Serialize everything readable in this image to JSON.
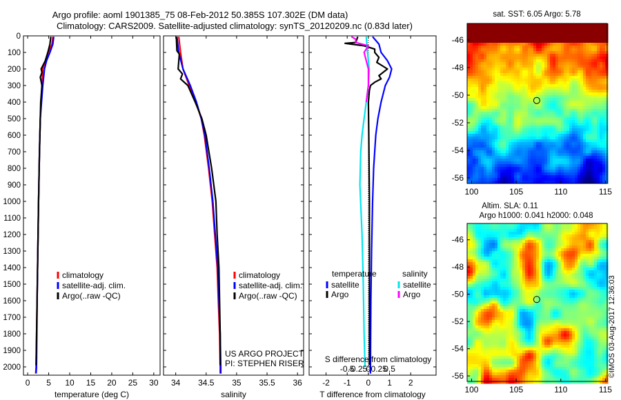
{
  "header": {
    "line1": "Argo profile: aoml 1901385_75 08-Feb-2012 50.385S 107.302E (DM data)",
    "line2": "Climatology: CARS2009. Satellite-adjusted climatology: synTS_20120209.nc (0.83d later)"
  },
  "colors": {
    "climatology": "#ff0000",
    "satellite": "#0000ff",
    "argo": "#000000",
    "salinity_satellite": "#00e5ee",
    "salinity_argo": "#ff00ff"
  },
  "chart_data": [
    {
      "type": "line",
      "id": "temperature",
      "xlabel": "temperature (deg C)",
      "xlim": [
        -1,
        31.5
      ],
      "ylim": [
        2050,
        0
      ],
      "xticks": [
        "0",
        "5",
        "10",
        "15",
        "20",
        "25",
        "30"
      ],
      "xtick_values": [
        0,
        5,
        10,
        15,
        20,
        25,
        30
      ],
      "yticks": [
        "0",
        "100",
        "200",
        "300",
        "400",
        "500",
        "600",
        "700",
        "800",
        "900",
        "1000",
        "1100",
        "1200",
        "1300",
        "1400",
        "1500",
        "1600",
        "1700",
        "1800",
        "1900",
        "2000"
      ],
      "ytick_values": [
        0,
        100,
        200,
        300,
        400,
        500,
        600,
        700,
        800,
        900,
        1000,
        1100,
        1200,
        1300,
        1400,
        1500,
        1600,
        1700,
        1800,
        1900,
        2000
      ],
      "legend": [
        "climatology",
        "satellite-adj. clim.",
        "Argo(..raw -QC)"
      ],
      "series": [
        {
          "key": "climatology",
          "depth": [
            5,
            50,
            100,
            150,
            200,
            300,
            400,
            500,
            700,
            1000,
            1500,
            2000,
            2040
          ],
          "values": [
            6.0,
            5.8,
            4.9,
            4.2,
            3.6,
            3.4,
            3.2,
            3.0,
            2.8,
            2.6,
            2.3,
            2.0,
            1.9
          ]
        },
        {
          "key": "satellite",
          "depth": [
            5,
            50,
            100,
            150,
            200,
            300,
            400,
            500,
            700,
            1000,
            1500,
            2000,
            2040
          ],
          "values": [
            6.2,
            6.0,
            5.3,
            4.5,
            4.0,
            3.6,
            3.3,
            3.0,
            2.8,
            2.6,
            2.3,
            2.1,
            2.0
          ]
        },
        {
          "key": "argo",
          "depth": [
            5,
            50,
            100,
            150,
            200,
            220,
            250,
            300,
            400,
            500,
            700,
            1000,
            1500,
            1990
          ],
          "values": [
            5.5,
            5.3,
            4.8,
            4.2,
            3.2,
            3.4,
            3.0,
            3.4,
            3.1,
            3.0,
            2.8,
            2.6,
            2.3,
            2.0
          ]
        }
      ]
    },
    {
      "type": "line",
      "id": "salinity",
      "xlabel": "salinity",
      "xlim": [
        33.8,
        36.1
      ],
      "ylim": [
        2050,
        0
      ],
      "xticks": [
        "34",
        "34.5",
        "35",
        "35.5",
        "36"
      ],
      "xtick_values": [
        34,
        34.5,
        35,
        35.5,
        36
      ],
      "legend": [
        "climatology",
        "satellite-adj. clim.",
        "Argo(..raw -QC)"
      ],
      "annotation": [
        "US ARGO PROJECT",
        "PI: STEPHEN RISER"
      ],
      "series": [
        {
          "key": "climatology",
          "depth": [
            5,
            100,
            200,
            300,
            400,
            500,
            600,
            800,
            1000,
            1200,
            1400,
            1600,
            1800,
            2000,
            2040
          ],
          "values": [
            34.05,
            34.08,
            34.12,
            34.22,
            34.33,
            34.42,
            34.47,
            34.54,
            34.6,
            34.64,
            34.68,
            34.7,
            34.72,
            34.73,
            34.73
          ]
        },
        {
          "key": "satellite",
          "depth": [
            5,
            100,
            200,
            300,
            400,
            500,
            600,
            800,
            1000,
            1200,
            1400,
            1600,
            1800,
            2000,
            2040
          ],
          "values": [
            34.02,
            34.05,
            34.12,
            34.24,
            34.34,
            34.42,
            34.48,
            34.55,
            34.61,
            34.65,
            34.69,
            34.71,
            34.73,
            34.74,
            34.74
          ]
        },
        {
          "key": "argo",
          "depth": [
            5,
            90,
            110,
            200,
            230,
            260,
            300,
            400,
            500,
            600,
            800,
            1000,
            1200,
            1400,
            1600,
            1800,
            1990
          ],
          "values": [
            34.01,
            34.02,
            34.06,
            34.04,
            34.11,
            34.08,
            34.2,
            34.32,
            34.43,
            34.5,
            34.59,
            34.66,
            34.68,
            34.71,
            34.72,
            34.73,
            34.73
          ]
        }
      ]
    },
    {
      "type": "line",
      "id": "difference",
      "xlabel": "T difference from climatology",
      "top_xlabel": "S difference from climatology",
      "xlim": [
        -2.8,
        3.2
      ],
      "ylim": [
        2050,
        0
      ],
      "xticks": [
        "-2",
        "-1",
        "0",
        "1",
        "2"
      ],
      "xtick_values": [
        -2,
        -1,
        0,
        1,
        2
      ],
      "top_xticks": [
        "-0.5",
        "-0.25",
        "0",
        "0.25",
        "0.5"
      ],
      "legend_titles": [
        "temperature",
        "salinity"
      ],
      "legend": [
        "satellite",
        "Argo",
        "satellite",
        "Argo"
      ],
      "series": [
        {
          "key": "temp_satellite",
          "depth": [
            5,
            50,
            100,
            150,
            200,
            250,
            300,
            400,
            500,
            600,
            800,
            1000,
            1300,
            1600,
            2000,
            2040
          ],
          "values": [
            0.2,
            0.5,
            0.6,
            0.9,
            1.1,
            1.0,
            0.8,
            0.6,
            0.45,
            0.35,
            0.25,
            0.2,
            0.15,
            0.12,
            0.1,
            0.1
          ]
        },
        {
          "key": "temp_argo",
          "depth": [
            5,
            40,
            45,
            60,
            80,
            100,
            130,
            160,
            200,
            240,
            260,
            280,
            300,
            330,
            400,
            600,
            1000,
            1500,
            1990
          ],
          "values": [
            -0.5,
            -0.6,
            -1.1,
            -0.2,
            0.3,
            0.3,
            0.5,
            0.4,
            0.9,
            0.5,
            0.6,
            0.3,
            0.1,
            0.05,
            0.0,
            0.02,
            0.05,
            0.05,
            0.05
          ]
        },
        {
          "key": "sal_satellite",
          "depth": [
            5,
            100,
            200,
            300,
            400,
            500,
            600,
            700,
            900,
            1200,
            1500,
            1800,
            2000
          ],
          "values": [
            -0.05,
            -0.02,
            0.02,
            0.0,
            -0.05,
            -0.1,
            -0.15,
            -0.18,
            -0.2,
            -0.15,
            -0.12,
            -0.1,
            -0.08
          ]
        },
        {
          "key": "sal_argo",
          "depth": [
            5,
            20,
            40,
            60,
            100,
            200,
            300,
            400
          ],
          "values": [
            -0.4,
            -0.3,
            -0.3,
            0.0,
            -0.1,
            0.0,
            0.0,
            -0.05
          ]
        }
      ]
    },
    {
      "type": "heatmap",
      "id": "sst_map",
      "title": "sat. SST: 6.05  Argo: 5.78",
      "xlim": [
        99.5,
        115.2
      ],
      "ylim": [
        -56.4,
        -44.8
      ],
      "xticks": [
        "100",
        "105",
        "110",
        "115"
      ],
      "xtick_values": [
        100,
        105,
        110,
        115
      ],
      "yticks": [
        "-46",
        "-48",
        "-50",
        "-52",
        "-54",
        "-56"
      ],
      "ytick_values": [
        -46,
        -48,
        -50,
        -52,
        -54,
        -56
      ],
      "marker": {
        "lon": 107.302,
        "lat": -50.385
      }
    },
    {
      "type": "heatmap",
      "id": "sla_map",
      "title_lines": [
        "Altim. SLA: 0.11",
        "Argo h1000: 0.041  h2000: 0.048"
      ],
      "xlim": [
        99.5,
        115.2
      ],
      "ylim": [
        -56.4,
        -44.8
      ],
      "xticks": [
        "100",
        "105",
        "110",
        "115"
      ],
      "xtick_values": [
        100,
        105,
        110,
        115
      ],
      "yticks": [
        "-46",
        "-48",
        "-50",
        "-52",
        "-54",
        "-56"
      ],
      "ytick_values": [
        -46,
        -48,
        -50,
        -52,
        -54,
        -56
      ],
      "marker": {
        "lon": 107.302,
        "lat": -50.385
      }
    }
  ],
  "credit": "©IMOS 03-Aug-2017 12:36:03"
}
